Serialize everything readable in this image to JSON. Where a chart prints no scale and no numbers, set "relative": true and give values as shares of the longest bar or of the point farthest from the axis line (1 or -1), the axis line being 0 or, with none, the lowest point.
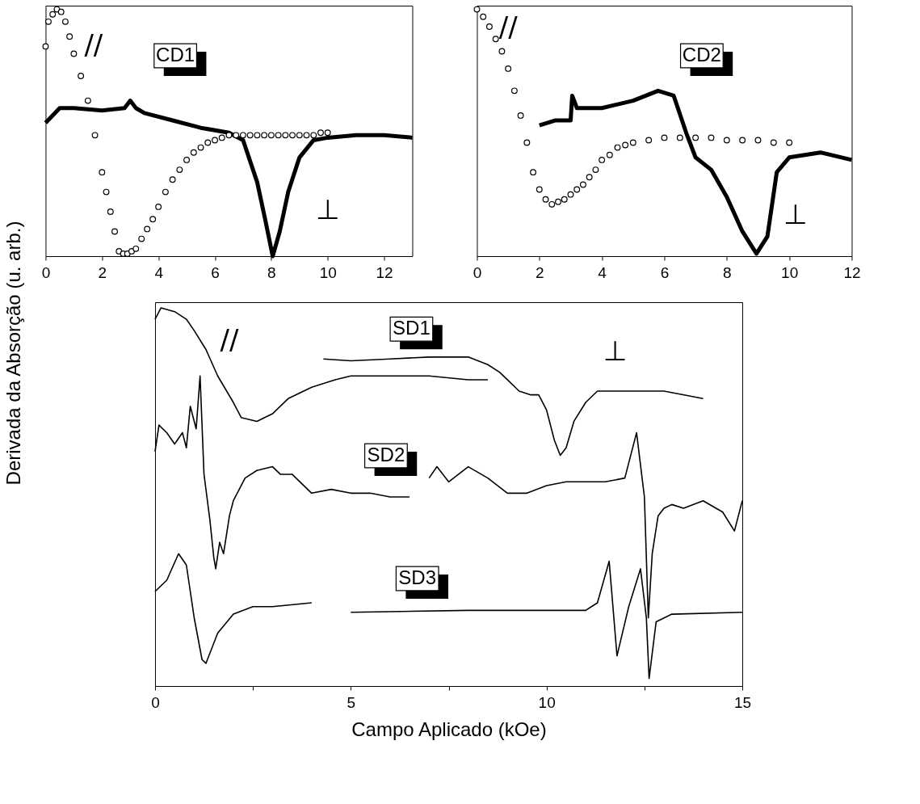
{
  "chart_data": [
    {
      "type": "line",
      "relative": true,
      "ylabel": "Derivada da Absorção (u. arb.)",
      "xlim": [
        0,
        13
      ],
      "xticks": [
        0,
        2,
        4,
        6,
        8,
        10,
        12
      ],
      "series": [
        {
          "type": "scatter",
          "marker": "circle",
          "color": "#000000",
          "x": [
            0,
            0.1,
            0.25,
            0.4,
            0.55,
            0.7,
            0.85,
            1.0,
            1.25,
            1.5,
            1.75,
            2.0,
            2.15,
            2.3,
            2.45,
            2.6,
            2.75,
            2.9,
            3.05,
            3.2,
            3.4,
            3.6,
            3.8,
            4.0,
            4.25,
            4.5,
            4.75,
            5.0,
            5.25,
            5.5,
            5.75,
            6.0,
            6.25,
            6.5,
            6.75,
            7.0,
            7.25,
            7.5,
            7.75,
            8.0,
            8.25,
            8.5,
            8.75,
            9.0,
            9.25,
            9.5,
            9.75,
            10.0
          ],
          "values": [
            0.85,
            0.95,
            0.98,
            1.0,
            0.99,
            0.95,
            0.89,
            0.82,
            0.73,
            0.63,
            0.49,
            0.34,
            0.26,
            0.18,
            0.1,
            0.02,
            0.01,
            0.01,
            0.02,
            0.03,
            0.07,
            0.11,
            0.15,
            0.2,
            0.26,
            0.31,
            0.35,
            0.39,
            0.42,
            0.44,
            0.46,
            0.47,
            0.48,
            0.49,
            0.49,
            0.49,
            0.49,
            0.49,
            0.49,
            0.49,
            0.49,
            0.49,
            0.49,
            0.49,
            0.49,
            0.49,
            0.5,
            0.5
          ]
        },
        {
          "type": "line",
          "color": "#000000",
          "x": [
            0,
            0.5,
            1.0,
            2.0,
            2.8,
            3.0,
            3.2,
            3.5,
            4.5,
            5.5,
            6.5,
            7.0,
            7.5,
            7.8,
            8.05,
            8.3,
            8.6,
            9.0,
            9.5,
            10.0,
            11.0,
            12.0,
            13.0
          ],
          "values": [
            0.54,
            0.6,
            0.6,
            0.59,
            0.6,
            0.63,
            0.6,
            0.58,
            0.55,
            0.52,
            0.5,
            0.47,
            0.3,
            0.14,
            0.0,
            0.1,
            0.26,
            0.4,
            0.47,
            0.48,
            0.49,
            0.49,
            0.48
          ]
        }
      ],
      "annotations": [
        "CD1",
        "//",
        "⊥"
      ]
    },
    {
      "type": "line",
      "relative": true,
      "xlim": [
        0,
        12
      ],
      "xticks": [
        0,
        2,
        4,
        6,
        8,
        10,
        12
      ],
      "series": [
        {
          "type": "scatter",
          "marker": "circle",
          "color": "#000000",
          "x": [
            0,
            0.2,
            0.4,
            0.6,
            0.8,
            1.0,
            1.2,
            1.4,
            1.6,
            1.8,
            2.0,
            2.2,
            2.4,
            2.6,
            2.8,
            3.0,
            3.2,
            3.4,
            3.6,
            3.8,
            4.0,
            4.25,
            4.5,
            4.75,
            5.0,
            5.5,
            6.0,
            6.5,
            7.0,
            7.5,
            8.0,
            8.5,
            9.0,
            9.5,
            10.0
          ],
          "values": [
            1.0,
            0.97,
            0.93,
            0.88,
            0.83,
            0.76,
            0.67,
            0.57,
            0.46,
            0.34,
            0.27,
            0.23,
            0.21,
            0.22,
            0.23,
            0.25,
            0.27,
            0.29,
            0.32,
            0.35,
            0.39,
            0.41,
            0.44,
            0.45,
            0.46,
            0.47,
            0.48,
            0.48,
            0.48,
            0.48,
            0.47,
            0.47,
            0.47,
            0.46,
            0.46
          ]
        },
        {
          "type": "line",
          "color": "#000000",
          "x": [
            2.0,
            2.5,
            3.0,
            3.05,
            3.2,
            4.0,
            5.0,
            5.8,
            6.3,
            6.7,
            7.0,
            7.5,
            8.0,
            8.5,
            8.95,
            9.3,
            9.6,
            10.0,
            11.0,
            12.0
          ],
          "values": [
            0.53,
            0.55,
            0.55,
            0.65,
            0.6,
            0.6,
            0.63,
            0.67,
            0.65,
            0.5,
            0.4,
            0.35,
            0.24,
            0.1,
            0.01,
            0.08,
            0.34,
            0.4,
            0.42,
            0.39
          ]
        }
      ],
      "annotations": [
        "CD2",
        "//",
        "⊥"
      ]
    },
    {
      "type": "line",
      "relative": true,
      "xlabel": "Campo Aplicado (kOe)",
      "xlim": [
        0,
        15
      ],
      "xticks": [
        0,
        {
          "value": 2.5,
          "label": null
        },
        5,
        {
          "value": 7.5,
          "label": null
        },
        10,
        {
          "value": 12.5,
          "label": null
        },
        15
      ],
      "series": [
        {
          "color": "#000000",
          "x": [
            0,
            0.15,
            0.5,
            0.8,
            1.0,
            1.3,
            1.6,
            2.0,
            2.2,
            2.6,
            3.0,
            3.4,
            4.0,
            4.6,
            5.0,
            6.0,
            7.0,
            8.0,
            8.5
          ],
          "values": [
            0.97,
            1.0,
            0.99,
            0.97,
            0.94,
            0.89,
            0.82,
            0.75,
            0.71,
            0.7,
            0.72,
            0.76,
            0.79,
            0.81,
            0.82,
            0.82,
            0.82,
            0.81,
            0.81
          ]
        },
        {
          "color": "#000000",
          "x": [
            4.3,
            5.0,
            6.0,
            7.0,
            7.5,
            8.0,
            8.5,
            8.8,
            9.0,
            9.3,
            9.6,
            9.8,
            10.0,
            10.2,
            10.35,
            10.5,
            10.7,
            11.0,
            11.3,
            12.0,
            13.0,
            14.0
          ],
          "values": [
            0.865,
            0.86,
            0.865,
            0.87,
            0.87,
            0.87,
            0.85,
            0.83,
            0.81,
            0.78,
            0.77,
            0.77,
            0.73,
            0.65,
            0.61,
            0.63,
            0.7,
            0.75,
            0.78,
            0.78,
            0.78,
            0.76
          ]
        },
        {
          "color": "#000000",
          "x": [
            0,
            0.1,
            0.3,
            0.5,
            0.7,
            0.8,
            0.9,
            1.05,
            1.15,
            1.25,
            1.4,
            1.5,
            1.55,
            1.65,
            1.75,
            1.9,
            2.0,
            2.3,
            2.6,
            3.0,
            3.2,
            3.5,
            4.0,
            4.5,
            5.0,
            5.5,
            6.0,
            6.5
          ],
          "values": [
            0.62,
            0.69,
            0.67,
            0.64,
            0.67,
            0.63,
            0.74,
            0.68,
            0.82,
            0.56,
            0.44,
            0.34,
            0.31,
            0.38,
            0.35,
            0.45,
            0.49,
            0.55,
            0.57,
            0.58,
            0.56,
            0.56,
            0.51,
            0.52,
            0.51,
            0.51,
            0.5,
            0.5
          ]
        },
        {
          "color": "#000000",
          "x": [
            7.0,
            7.2,
            7.5,
            8.0,
            8.5,
            9.0,
            9.5,
            10.0,
            10.5,
            11.0,
            11.5,
            12.0,
            12.3,
            12.5,
            12.6,
            12.7,
            12.85,
            13.0,
            13.2,
            13.5,
            14.0,
            14.5,
            14.8,
            15.0
          ],
          "values": [
            0.55,
            0.58,
            0.54,
            0.58,
            0.55,
            0.51,
            0.51,
            0.53,
            0.54,
            0.54,
            0.54,
            0.55,
            0.67,
            0.5,
            0.18,
            0.35,
            0.45,
            0.47,
            0.48,
            0.47,
            0.49,
            0.46,
            0.41,
            0.49
          ]
        },
        {
          "color": "#000000",
          "x": [
            0,
            0.3,
            0.6,
            0.8,
            1.0,
            1.2,
            1.3,
            1.6,
            2.0,
            2.5,
            3.0,
            4.0
          ],
          "values": [
            0.25,
            0.28,
            0.35,
            0.32,
            0.18,
            0.07,
            0.06,
            0.14,
            0.19,
            0.21,
            0.21,
            0.22
          ]
        },
        {
          "color": "#000000",
          "x": [
            5.0,
            8.0,
            11.0,
            11.3,
            11.6,
            11.8,
            12.1,
            12.4,
            12.55,
            12.62,
            12.8,
            13.2,
            15.0
          ],
          "values": [
            0.195,
            0.2,
            0.2,
            0.22,
            0.33,
            0.08,
            0.21,
            0.31,
            0.18,
            0.02,
            0.17,
            0.19,
            0.195
          ]
        }
      ],
      "annotations": [
        "SD1",
        "SD2",
        "SD3",
        "//",
        "⊥"
      ]
    }
  ]
}
